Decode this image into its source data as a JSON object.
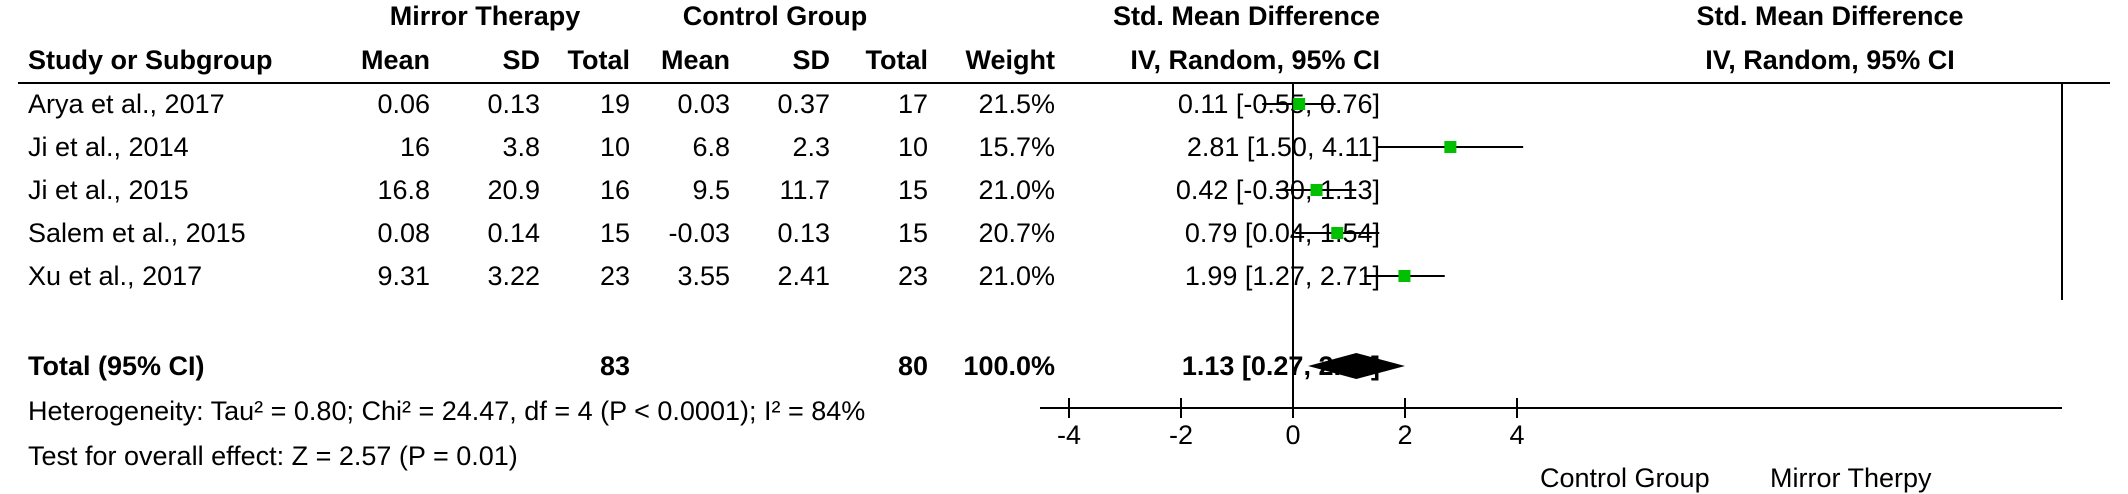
{
  "headers": {
    "group_exp": "Mirror Therapy",
    "group_ctl": "Control Group",
    "effect": "Std. Mean Difference",
    "study": "Study or Subgroup",
    "mean": "Mean",
    "sd": "SD",
    "total": "Total",
    "weight": "Weight",
    "method": "IV, Random, 95% CI",
    "plot_title": "Std. Mean Difference",
    "plot_method": "IV, Random, 95% CI"
  },
  "studies": [
    {
      "name": "Arya et al., 2017",
      "e_mean": "0.06",
      "e_sd": "0.13",
      "e_total": "19",
      "c_mean": "0.03",
      "c_sd": "0.37",
      "c_total": "17",
      "weight": "21.5%",
      "ci_text": "0.11 [-0.55, 0.76]"
    },
    {
      "name": "Ji et al., 2014",
      "e_mean": "16",
      "e_sd": "3.8",
      "e_total": "10",
      "c_mean": "6.8",
      "c_sd": "2.3",
      "c_total": "10",
      "weight": "15.7%",
      "ci_text": "2.81 [1.50, 4.11]"
    },
    {
      "name": "Ji et al., 2015",
      "e_mean": "16.8",
      "e_sd": "20.9",
      "e_total": "16",
      "c_mean": "9.5",
      "c_sd": "11.7",
      "c_total": "15",
      "weight": "21.0%",
      "ci_text": "0.42 [-0.30, 1.13]"
    },
    {
      "name": "Salem et al., 2015",
      "e_mean": "0.08",
      "e_sd": "0.14",
      "e_total": "15",
      "c_mean": "-0.03",
      "c_sd": "0.13",
      "c_total": "15",
      "weight": "20.7%",
      "ci_text": "0.79 [0.04, 1.54]"
    },
    {
      "name": "Xu et al., 2017",
      "e_mean": "9.31",
      "e_sd": "3.22",
      "e_total": "23",
      "c_mean": "3.55",
      "c_sd": "2.41",
      "c_total": "23",
      "weight": "21.0%",
      "ci_text": "1.99 [1.27, 2.71]"
    }
  ],
  "total": {
    "label": "Total (95% CI)",
    "e_total": "83",
    "c_total": "80",
    "weight": "100.0%",
    "ci_text": "1.13 [0.27, 2.00]"
  },
  "heterogeneity": "Heterogeneity: Tau² = 0.80; Chi² = 24.47, df = 4 (P < 0.0001); I² = 84%",
  "overall_test": "Test for overall effect: Z = 2.57 (P = 0.01)",
  "axis": {
    "ticks": [
      "-4",
      "-2",
      "0",
      "2",
      "4"
    ],
    "favors_left": "Control Group",
    "favors_right": "Mirror Therpy"
  },
  "colors": {
    "marker": "#00c000",
    "diamond": "#000000",
    "line": "#000000"
  },
  "chart_data": {
    "type": "forest",
    "xlim": [
      -4.5,
      4.5
    ],
    "ticks": [
      -4,
      -2,
      0,
      2,
      4
    ],
    "studies": [
      {
        "name": "Arya et al., 2017",
        "est": 0.11,
        "lo": -0.55,
        "hi": 0.76,
        "weight": 21.5
      },
      {
        "name": "Ji et al., 2014",
        "est": 2.81,
        "lo": 1.5,
        "hi": 4.11,
        "weight": 15.7
      },
      {
        "name": "Ji et al., 2015",
        "est": 0.42,
        "lo": -0.3,
        "hi": 1.13,
        "weight": 21.0
      },
      {
        "name": "Salem et al., 2015",
        "est": 0.79,
        "lo": 0.04,
        "hi": 1.54,
        "weight": 20.7
      },
      {
        "name": "Xu et al., 2017",
        "est": 1.99,
        "lo": 1.27,
        "hi": 2.71,
        "weight": 21.0
      }
    ],
    "pooled": {
      "est": 1.13,
      "lo": 0.27,
      "hi": 2.0
    }
  }
}
